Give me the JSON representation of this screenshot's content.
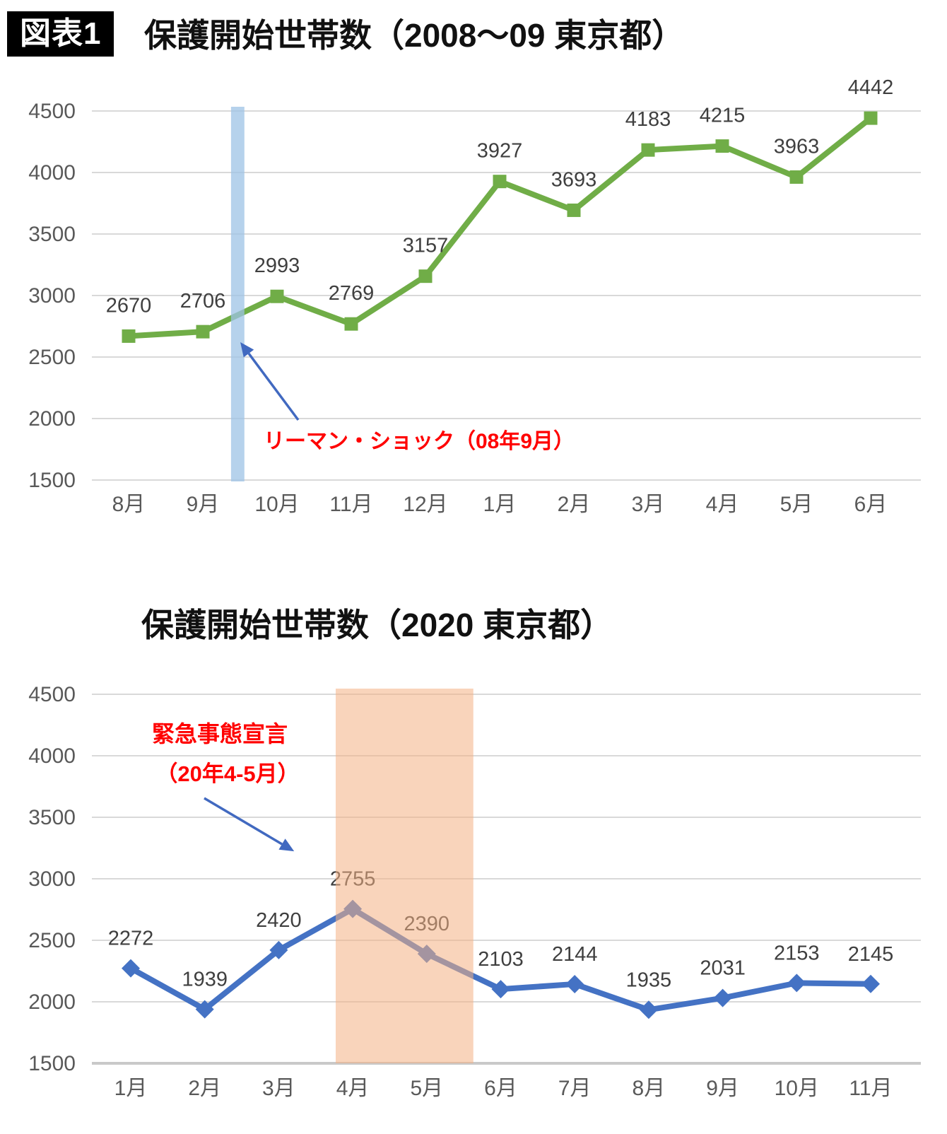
{
  "page": {
    "background": "#FFFFFF"
  },
  "figure_badge": "図表1",
  "chart_data": [
    {
      "type": "line",
      "title": "保護開始世帯数（2008～09 東京都）",
      "categories": [
        "8月",
        "9月",
        "10月",
        "11月",
        "12月",
        "1月",
        "2月",
        "3月",
        "4月",
        "5月",
        "6月"
      ],
      "series": [
        {
          "name": "保護開始世帯数",
          "values": [
            2670,
            2706,
            2993,
            2769,
            3157,
            3927,
            3693,
            4183,
            4215,
            3963,
            4442
          ]
        }
      ],
      "ylim": [
        1500,
        4500
      ],
      "yticks": [
        1500,
        2000,
        2500,
        3000,
        3500,
        4000,
        4500
      ],
      "grid": true,
      "legend": "none",
      "line_color": "#70AD47",
      "marker": "square",
      "data_label_color": "#3F3F3F",
      "axis_label_color": "#595959",
      "gridline_color": "#D9D9D9",
      "band": {
        "from_index": 1.38,
        "to_index": 1.56,
        "color": "#9DC3E6",
        "opacity": 0.75
      },
      "annotation": {
        "lines": [
          "リーマン・ショック（08年9月）"
        ],
        "color": "#FF0000"
      },
      "arrow_color": "#4169C0"
    },
    {
      "type": "line",
      "title": "保護開始世帯数（2020 東京都）",
      "categories": [
        "1月",
        "2月",
        "3月",
        "4月",
        "5月",
        "6月",
        "7月",
        "8月",
        "9月",
        "10月",
        "11月"
      ],
      "series": [
        {
          "name": "保護開始世帯数",
          "values": [
            2272,
            1939,
            2420,
            2755,
            2390,
            2103,
            2144,
            1935,
            2031,
            2153,
            2145
          ]
        }
      ],
      "ylim": [
        1500,
        4500
      ],
      "yticks": [
        1500,
        2000,
        2500,
        3000,
        3500,
        4000,
        4500
      ],
      "grid": true,
      "legend": "none",
      "line_color": "#4472C4",
      "marker": "diamond",
      "data_label_color": "#3F3F3F",
      "axis_label_color": "#595959",
      "gridline_color": "#D9D9D9",
      "axis_line_color": "#C9C9C9",
      "band": {
        "from_index": 2.77,
        "to_index": 4.63,
        "color": "#F4B183",
        "opacity": 0.55
      },
      "annotation": {
        "lines": [
          "緊急事態宣言",
          "（20年4-5月）"
        ],
        "color": "#FF0000"
      },
      "arrow_color": "#4169C0"
    }
  ]
}
